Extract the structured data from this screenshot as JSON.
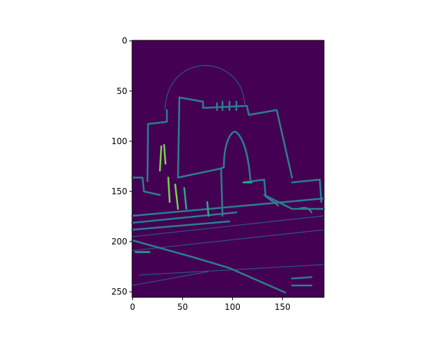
{
  "chart_data": {
    "type": "image",
    "xlim": [
      -0.5,
      191.5
    ],
    "ylim": [
      255.5,
      -0.5
    ],
    "xticks": [
      0,
      50,
      100,
      150
    ],
    "yticks": [
      0,
      50,
      100,
      150,
      200,
      250
    ]
  }
}
